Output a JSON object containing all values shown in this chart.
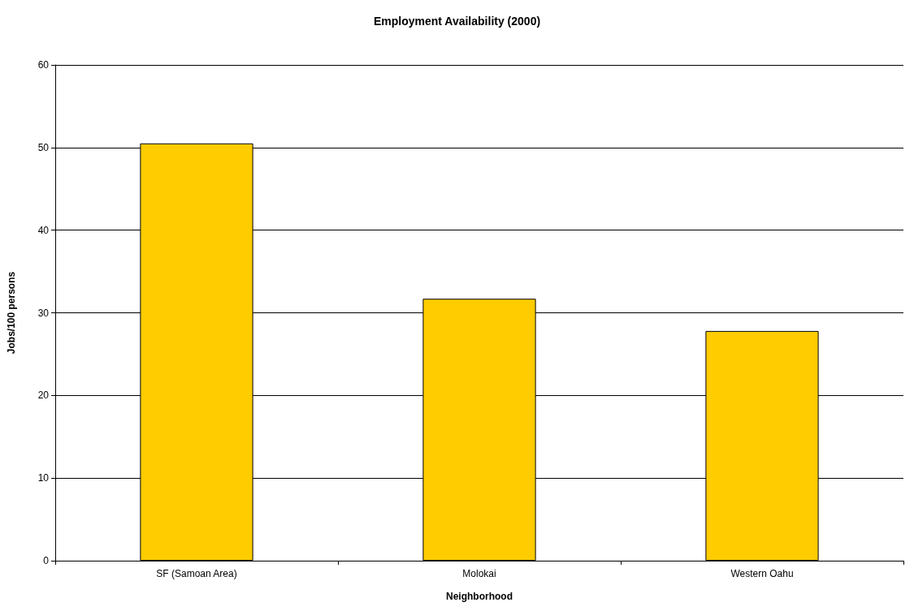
{
  "chart_data": {
    "type": "bar",
    "title": "Employment Availability (2000)",
    "xlabel": "Neighborhood",
    "ylabel": "Jobs/100 persons",
    "categories": [
      "SF (Samoan Area)",
      "Molokai",
      "Western Oahu"
    ],
    "values": [
      50.5,
      31.7,
      27.8
    ],
    "color": "#ffcc00",
    "ylim": [
      0,
      60
    ],
    "yticks": [
      0,
      10,
      20,
      30,
      40,
      50,
      60
    ],
    "grid": "y"
  }
}
